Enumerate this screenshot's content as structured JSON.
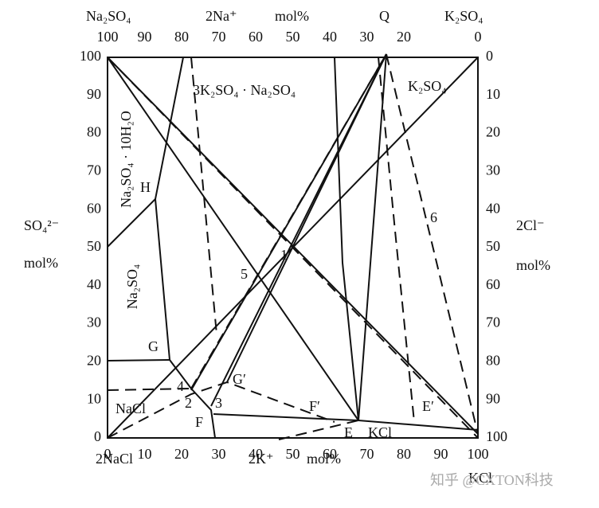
{
  "top_axis": {
    "labels": [
      "Na₂SO₄",
      "2Na⁺",
      "mol%",
      "Q",
      "K₂SO₄"
    ],
    "ticks": [
      100,
      90,
      80,
      70,
      60,
      50,
      40,
      30,
      20,
      0
    ]
  },
  "bottom_axis": {
    "labels": [
      "2NaCl",
      "2K⁺",
      "mol%",
      "KCl"
    ],
    "ticks": [
      0,
      10,
      20,
      30,
      40,
      50,
      60,
      70,
      80,
      90,
      100
    ]
  },
  "left_axis": {
    "labels": [
      "SO₄²⁻",
      "mol%"
    ],
    "ticks": [
      0,
      10,
      20,
      30,
      40,
      50,
      60,
      70,
      80,
      90,
      100
    ]
  },
  "right_axis": {
    "labels": [
      "2Cl⁻",
      "mol%"
    ],
    "ticks": [
      0,
      10,
      20,
      30,
      40,
      50,
      60,
      70,
      80,
      90,
      100
    ]
  },
  "regions": [
    "3K₂SO₄ · Na₂SO₄",
    "K₂SO₄",
    "Na₂SO₄ · 10H₂O",
    "Na₂SO₄",
    "NaCl",
    "KCl"
  ],
  "points": [
    "H",
    "G",
    "F",
    "E",
    "E′",
    "F′",
    "G′",
    "1",
    "2",
    "3",
    "4",
    "5",
    "6"
  ],
  "watermark": "知乎 @CXTON科技"
}
